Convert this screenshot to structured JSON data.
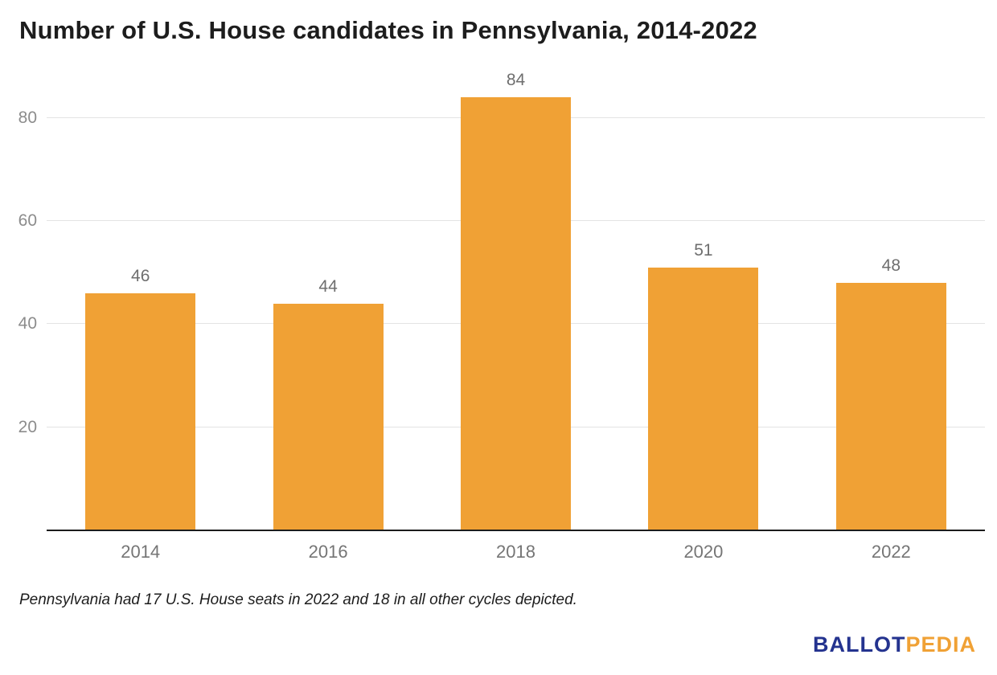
{
  "title": "Number of U.S. House candidates in Pennsylvania, 2014-2022",
  "footnote": "Pennsylvania had 17 U.S. House seats in 2022 and 18 in all other cycles depicted.",
  "logo": {
    "part1": "BALLOT",
    "part2": "PEDIA"
  },
  "colors": {
    "bar": "#F0A135",
    "logo_blue": "#24338F",
    "logo_orange": "#F0A135",
    "grid": "#e3e3e3",
    "axis_text": "#757575",
    "title_text": "#1d1d1d"
  },
  "chart_data": {
    "type": "bar",
    "categories": [
      "2014",
      "2016",
      "2018",
      "2020",
      "2022"
    ],
    "values": [
      46,
      44,
      84,
      51,
      48
    ],
    "title": "Number of U.S. House candidates in Pennsylvania, 2014-2022",
    "xlabel": "",
    "ylabel": "",
    "ylim": [
      0,
      87
    ],
    "yticks": [
      20,
      40,
      60,
      80
    ],
    "grid": true,
    "legend": "none",
    "bar_color": "#F0A135"
  }
}
